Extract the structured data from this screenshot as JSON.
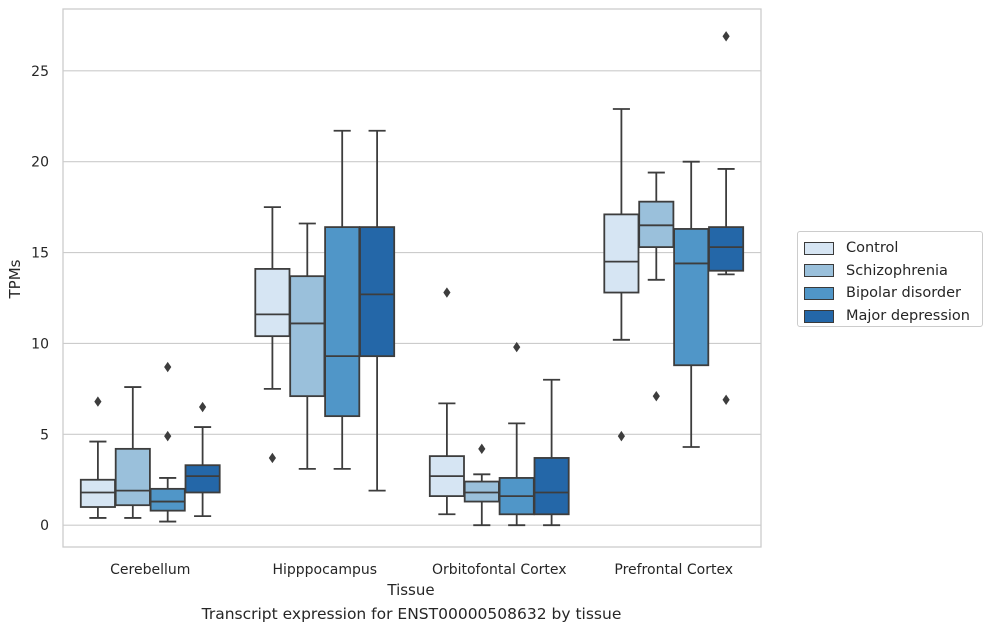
{
  "chart_data": {
    "type": "box",
    "xlabel": "Tissue",
    "ylabel": "TPMs",
    "caption": "Transcript expression for ENST00000508632 by tissue",
    "ylim": [
      -1.2,
      28.4
    ],
    "yticks": [
      0,
      5,
      10,
      15,
      20,
      25
    ],
    "grid": true,
    "legend_position": "right",
    "categories": [
      "Cerebellum",
      "Hipppocampus",
      "Orbitofontal Cortex",
      "Prefrontal Cortex"
    ],
    "series": [
      {
        "name": "Control",
        "color": "#d6e5f3",
        "boxes": [
          {
            "whislo": 0.4,
            "q1": 1.0,
            "med": 1.8,
            "q3": 2.5,
            "whishi": 4.6,
            "fliers": [
              6.8
            ]
          },
          {
            "whislo": 7.5,
            "q1": 10.4,
            "med": 11.6,
            "q3": 14.1,
            "whishi": 17.5,
            "fliers": [
              3.7
            ]
          },
          {
            "whislo": 0.6,
            "q1": 1.6,
            "med": 2.7,
            "q3": 3.8,
            "whishi": 6.7,
            "fliers": [
              12.8
            ]
          },
          {
            "whislo": 10.2,
            "q1": 12.8,
            "med": 14.5,
            "q3": 17.1,
            "whishi": 22.9,
            "fliers": [
              4.9
            ]
          }
        ]
      },
      {
        "name": "Schizophrenia",
        "color": "#9ac0db",
        "boxes": [
          {
            "whislo": 0.4,
            "q1": 1.1,
            "med": 1.9,
            "q3": 4.2,
            "whishi": 7.6,
            "fliers": []
          },
          {
            "whislo": 3.1,
            "q1": 7.1,
            "med": 11.1,
            "q3": 13.7,
            "whishi": 16.6,
            "fliers": []
          },
          {
            "whislo": 0.0,
            "q1": 1.3,
            "med": 1.8,
            "q3": 2.4,
            "whishi": 2.8,
            "fliers": [
              4.2
            ]
          },
          {
            "whislo": 13.5,
            "q1": 15.3,
            "med": 16.5,
            "q3": 17.8,
            "whishi": 19.4,
            "fliers": [
              7.1
            ]
          }
        ]
      },
      {
        "name": "Bipolar disorder",
        "color": "#5096c8",
        "boxes": [
          {
            "whislo": 0.2,
            "q1": 0.8,
            "med": 1.3,
            "q3": 2.0,
            "whishi": 2.6,
            "fliers": [
              4.9,
              8.7
            ]
          },
          {
            "whislo": 3.1,
            "q1": 6.0,
            "med": 9.3,
            "q3": 16.4,
            "whishi": 21.7,
            "fliers": []
          },
          {
            "whislo": 0.0,
            "q1": 0.6,
            "med": 1.6,
            "q3": 2.6,
            "whishi": 5.6,
            "fliers": [
              9.8
            ]
          },
          {
            "whislo": 4.3,
            "q1": 8.8,
            "med": 14.4,
            "q3": 16.3,
            "whishi": 20.0,
            "fliers": []
          }
        ]
      },
      {
        "name": "Major depression",
        "color": "#2467a8",
        "boxes": [
          {
            "whislo": 0.5,
            "q1": 1.8,
            "med": 2.7,
            "q3": 3.3,
            "whishi": 5.4,
            "fliers": [
              6.5
            ]
          },
          {
            "whislo": 1.9,
            "q1": 9.3,
            "med": 12.7,
            "q3": 16.4,
            "whishi": 21.7,
            "fliers": []
          },
          {
            "whislo": 0.0,
            "q1": 0.6,
            "med": 1.8,
            "q3": 3.7,
            "whishi": 8.0,
            "fliers": []
          },
          {
            "whislo": 13.8,
            "q1": 14.0,
            "med": 15.3,
            "q3": 16.4,
            "whishi": 19.6,
            "fliers": [
              6.9,
              26.9
            ]
          }
        ]
      }
    ]
  }
}
